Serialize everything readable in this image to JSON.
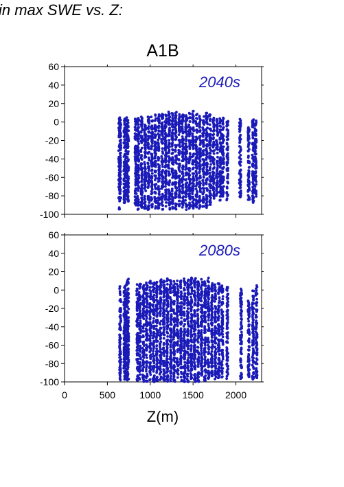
{
  "page": {
    "heading": "in max SWE vs. Z:"
  },
  "figure": {
    "title": "A1B",
    "xlabel": "Z(m)",
    "point_color": "#1a1ab8"
  },
  "chart_data": [
    {
      "type": "scatter",
      "panel_label": "2040s",
      "title": "A1B",
      "xlabel": "",
      "ylabel": "",
      "xlim": [
        0,
        2300
      ],
      "ylim": [
        -100,
        60
      ],
      "xticks": [
        0,
        500,
        1000,
        1500,
        2000
      ],
      "yticks": [
        -100,
        -80,
        -60,
        -40,
        -20,
        0,
        20,
        40,
        60
      ],
      "grid": false,
      "series": [
        {
          "color": "#1a1ab8",
          "columns": [
            {
              "x": 640,
              "y_min": -95,
              "y_max": 5
            },
            {
              "x": 650,
              "y_min": -85,
              "y_max": 3
            },
            {
              "x": 700,
              "y_min": -88,
              "y_max": 5
            },
            {
              "x": 720,
              "y_min": -80,
              "y_max": 5
            },
            {
              "x": 740,
              "y_min": -86,
              "y_max": 5
            },
            {
              "x": 830,
              "y_min": -92,
              "y_max": 6
            },
            {
              "x": 860,
              "y_min": -95,
              "y_max": 8
            },
            {
              "x": 900,
              "y_min": -93,
              "y_max": 6
            },
            {
              "x": 940,
              "y_min": -94,
              "y_max": 5
            },
            {
              "x": 980,
              "y_min": -95,
              "y_max": 6
            },
            {
              "x": 1020,
              "y_min": -94,
              "y_max": 7
            },
            {
              "x": 1060,
              "y_min": -95,
              "y_max": 8
            },
            {
              "x": 1100,
              "y_min": -94,
              "y_max": 8
            },
            {
              "x": 1140,
              "y_min": -95,
              "y_max": 9
            },
            {
              "x": 1180,
              "y_min": -93,
              "y_max": 10
            },
            {
              "x": 1220,
              "y_min": -95,
              "y_max": 12
            },
            {
              "x": 1260,
              "y_min": -94,
              "y_max": 10
            },
            {
              "x": 1300,
              "y_min": -95,
              "y_max": 11
            },
            {
              "x": 1340,
              "y_min": -94,
              "y_max": 9
            },
            {
              "x": 1380,
              "y_min": -93,
              "y_max": 8
            },
            {
              "x": 1420,
              "y_min": -95,
              "y_max": 9
            },
            {
              "x": 1460,
              "y_min": -94,
              "y_max": 10
            },
            {
              "x": 1500,
              "y_min": -95,
              "y_max": 12
            },
            {
              "x": 1540,
              "y_min": -93,
              "y_max": 10
            },
            {
              "x": 1580,
              "y_min": -94,
              "y_max": 8
            },
            {
              "x": 1620,
              "y_min": -92,
              "y_max": 7
            },
            {
              "x": 1660,
              "y_min": -93,
              "y_max": 10
            },
            {
              "x": 1700,
              "y_min": -90,
              "y_max": 8
            },
            {
              "x": 1740,
              "y_min": -85,
              "y_max": 5
            },
            {
              "x": 1780,
              "y_min": -80,
              "y_max": 3
            },
            {
              "x": 1820,
              "y_min": -85,
              "y_max": 4
            },
            {
              "x": 1850,
              "y_min": -82,
              "y_max": 5
            },
            {
              "x": 1900,
              "y_min": -85,
              "y_max": 2
            },
            {
              "x": 2050,
              "y_min": -82,
              "y_max": 4
            },
            {
              "x": 2150,
              "y_min": -85,
              "y_max": -5
            },
            {
              "x": 2200,
              "y_min": -88,
              "y_max": 3
            },
            {
              "x": 2230,
              "y_min": -82,
              "y_max": 2
            }
          ]
        }
      ]
    },
    {
      "type": "scatter",
      "panel_label": "2080s",
      "title": "",
      "xlabel": "Z(m)",
      "ylabel": "",
      "xlim": [
        0,
        2300
      ],
      "ylim": [
        -100,
        60
      ],
      "xticks": [
        0,
        500,
        1000,
        1500,
        2000
      ],
      "yticks": [
        -100,
        -80,
        -60,
        -40,
        -20,
        0,
        20,
        40,
        60
      ],
      "grid": false,
      "series": [
        {
          "color": "#1a1ab8",
          "columns": [
            {
              "x": 650,
              "y_min": -100,
              "y_max": 5
            },
            {
              "x": 700,
              "y_min": -98,
              "y_max": 5
            },
            {
              "x": 720,
              "y_min": -95,
              "y_max": 10
            },
            {
              "x": 740,
              "y_min": -100,
              "y_max": 13
            },
            {
              "x": 850,
              "y_min": -100,
              "y_max": 6
            },
            {
              "x": 880,
              "y_min": -99,
              "y_max": 8
            },
            {
              "x": 920,
              "y_min": -100,
              "y_max": 6
            },
            {
              "x": 960,
              "y_min": -100,
              "y_max": 8
            },
            {
              "x": 1000,
              "y_min": -99,
              "y_max": 10
            },
            {
              "x": 1040,
              "y_min": -100,
              "y_max": 8
            },
            {
              "x": 1080,
              "y_min": -100,
              "y_max": 10
            },
            {
              "x": 1120,
              "y_min": -99,
              "y_max": 12
            },
            {
              "x": 1160,
              "y_min": -100,
              "y_max": 10
            },
            {
              "x": 1200,
              "y_min": -100,
              "y_max": 15
            },
            {
              "x": 1240,
              "y_min": -99,
              "y_max": 12
            },
            {
              "x": 1280,
              "y_min": -100,
              "y_max": 14
            },
            {
              "x": 1320,
              "y_min": -100,
              "y_max": 12
            },
            {
              "x": 1360,
              "y_min": -99,
              "y_max": 11
            },
            {
              "x": 1400,
              "y_min": -100,
              "y_max": 13
            },
            {
              "x": 1440,
              "y_min": -100,
              "y_max": 12
            },
            {
              "x": 1480,
              "y_min": -99,
              "y_max": 16
            },
            {
              "x": 1520,
              "y_min": -100,
              "y_max": 14
            },
            {
              "x": 1560,
              "y_min": -100,
              "y_max": 12
            },
            {
              "x": 1600,
              "y_min": -99,
              "y_max": 13
            },
            {
              "x": 1640,
              "y_min": -100,
              "y_max": 12
            },
            {
              "x": 1680,
              "y_min": -98,
              "y_max": 14
            },
            {
              "x": 1720,
              "y_min": -95,
              "y_max": 8
            },
            {
              "x": 1760,
              "y_min": -97,
              "y_max": 6
            },
            {
              "x": 1800,
              "y_min": -96,
              "y_max": 8
            },
            {
              "x": 1840,
              "y_min": -95,
              "y_max": 5
            },
            {
              "x": 1900,
              "y_min": -97,
              "y_max": 4
            },
            {
              "x": 2060,
              "y_min": -98,
              "y_max": 5
            },
            {
              "x": 2150,
              "y_min": -95,
              "y_max": -10
            },
            {
              "x": 2200,
              "y_min": -98,
              "y_max": 0
            },
            {
              "x": 2240,
              "y_min": -96,
              "y_max": 5
            }
          ]
        }
      ]
    }
  ]
}
